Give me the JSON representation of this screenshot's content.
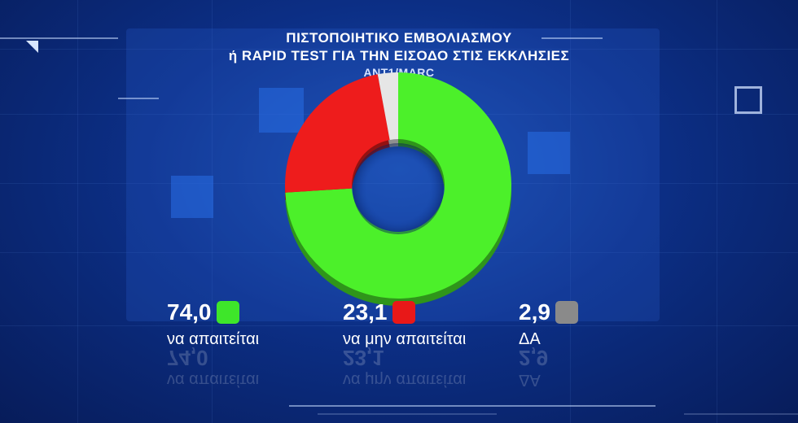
{
  "title_line1": "ΠΙΣΤΟΠΟΙΗΤΙΚΟ ΕΜΒΟΛΙΑΣΜΟΥ",
  "title_line2": "ή RAPID TEST ΓΙΑ ΤΗΝ ΕΙΣΟΔΟ ΣΤΙΣ ΕΚΚΛΗΣΙΕΣ",
  "source": "ANT1/MARC",
  "chart_data": {
    "type": "pie",
    "title": "ΠΙΣΤΟΠΟΙΗΤΙΚΟ ΕΜΒΟΛΙΑΣΜΟΥ ή RAPID TEST ΓΙΑ ΤΗΝ ΕΙΣΟΔΟ ΣΤΙΣ ΕΚΚΛΗΣΙΕΣ",
    "categories": [
      "να απαιτείται",
      "να μην απαιτείται",
      "ΔΑ"
    ],
    "values": [
      74.0,
      23.1,
      2.9
    ],
    "value_labels": [
      "74,0",
      "23,1",
      "2,9"
    ],
    "colors": [
      "#4cf02a",
      "#ee1c1c",
      "#e6e6e6"
    ],
    "legend_swatch_colors": [
      "#3ee62a",
      "#e81818",
      "#8a8a8a"
    ],
    "style": "donut",
    "legend": "bottom"
  }
}
